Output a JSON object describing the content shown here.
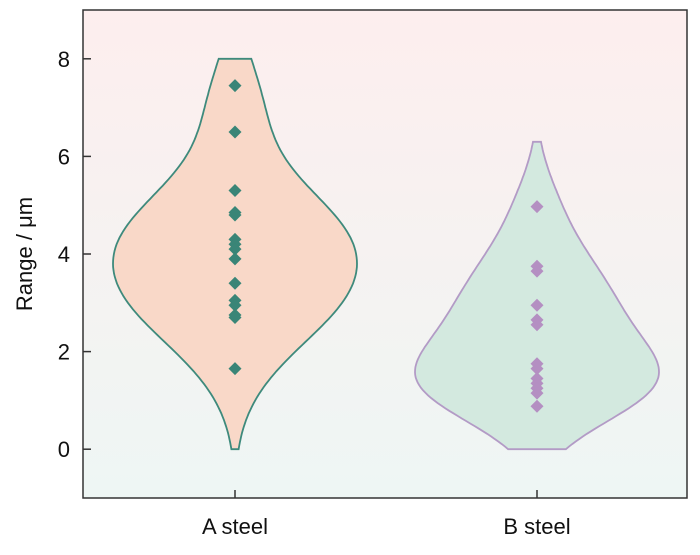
{
  "chart_data": {
    "type": "violin",
    "title": "",
    "xlabel": "",
    "ylabel": "Range / μm",
    "ylim": [
      -1,
      9
    ],
    "yticks": [
      0,
      2,
      4,
      6,
      8
    ],
    "grid": false,
    "background_gradient": [
      "#fdeeee",
      "#eef6f4"
    ],
    "categories": [
      "A steel",
      "B steel"
    ],
    "series": [
      {
        "category": "A steel",
        "fill": "#f9d8c8",
        "outline": "#3e8a7c",
        "marker_color": "#3a8577",
        "range": [
          0,
          8
        ],
        "points": [
          7.45,
          6.5,
          5.3,
          4.85,
          4.8,
          4.3,
          4.2,
          4.1,
          3.9,
          3.4,
          3.05,
          2.95,
          2.75,
          2.7,
          1.65
        ]
      },
      {
        "category": "B steel",
        "fill": "#d3e9df",
        "outline": "#b39bc6",
        "marker_color": "#b48fc2",
        "range": [
          0,
          6.3
        ],
        "points": [
          4.97,
          3.75,
          3.65,
          2.95,
          2.65,
          2.55,
          1.75,
          1.65,
          1.45,
          1.35,
          1.25,
          1.15,
          0.88
        ]
      }
    ]
  }
}
